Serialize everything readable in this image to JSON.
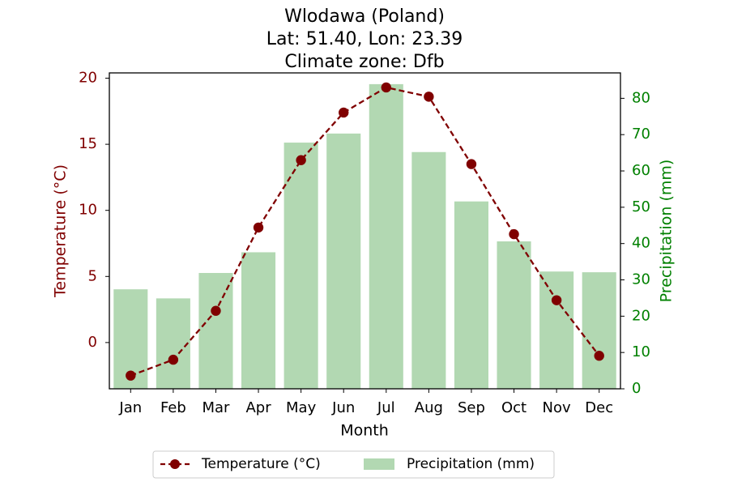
{
  "chart_data": {
    "type": "bar+line",
    "title_lines": [
      "Wlodawa (Poland)",
      "Lat: 51.40, Lon: 23.39",
      "Climate zone: Dfb"
    ],
    "xlabel": "Month",
    "categories": [
      "Jan",
      "Feb",
      "Mar",
      "Apr",
      "May",
      "Jun",
      "Jul",
      "Aug",
      "Sep",
      "Oct",
      "Nov",
      "Dec"
    ],
    "temperature": {
      "name": "Temperature (°C)",
      "axis_label": "Temperature (°C)",
      "values": [
        -2.5,
        -1.3,
        2.4,
        8.7,
        13.8,
        17.4,
        19.3,
        18.6,
        13.5,
        8.2,
        3.2,
        -1.0
      ],
      "ylim": [
        -3.5,
        20.4
      ],
      "ticks": [
        0,
        5,
        10,
        15,
        20
      ],
      "color": "#800000",
      "style": "dashed line with circle markers"
    },
    "precipitation": {
      "name": "Precipitation (mm)",
      "axis_label": "Precipitation (mm)",
      "values": [
        27.4,
        24.9,
        31.9,
        37.6,
        67.8,
        70.3,
        83.9,
        65.2,
        51.6,
        40.6,
        32.3,
        32.1
      ],
      "ylim": [
        0,
        87
      ],
      "ticks": [
        0,
        10,
        20,
        30,
        40,
        50,
        60,
        70,
        80
      ],
      "color": "#b2d8b2",
      "axis_color": "#008000"
    },
    "legend_placement": "bottom-center",
    "grid": false
  }
}
